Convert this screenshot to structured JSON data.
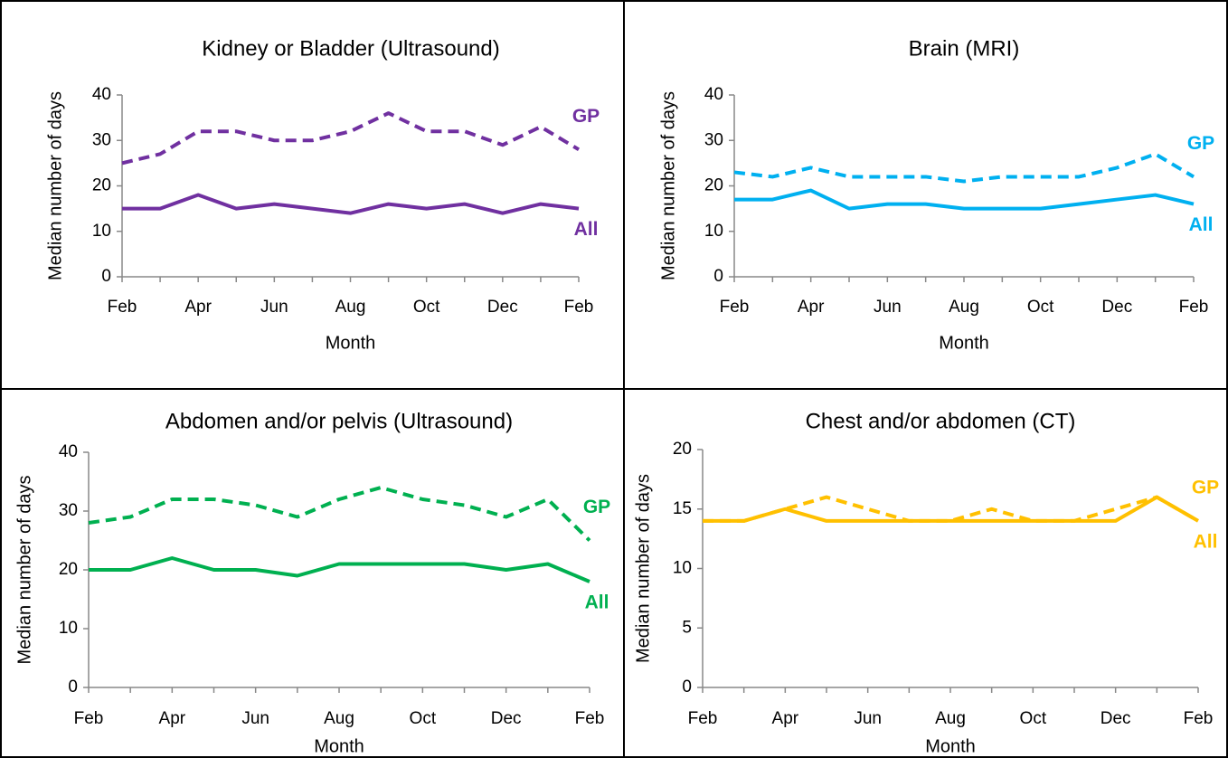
{
  "chart_data": [
    {
      "type": "line",
      "title": "Kidney or Bladder (Ultrasound)",
      "x_label": "Month",
      "y_label": "Median number of days",
      "categories": [
        "Feb",
        null,
        "Apr",
        null,
        "Jun",
        null,
        "Aug",
        null,
        "Oct",
        null,
        "Dec",
        null,
        "Feb"
      ],
      "ylim": [
        0,
        40
      ],
      "yticks": [
        0,
        10,
        20,
        30,
        40
      ],
      "series": [
        {
          "name": "GP",
          "color": "#7030a0",
          "dashed": true,
          "values": [
            25,
            27,
            32,
            32,
            30,
            30,
            32,
            36,
            32,
            32,
            29,
            33,
            28
          ]
        },
        {
          "name": "All",
          "color": "#7030a0",
          "dashed": false,
          "values": [
            15,
            15,
            18,
            15,
            16,
            15,
            14,
            16,
            15,
            16,
            14,
            16,
            15
          ]
        }
      ]
    },
    {
      "type": "line",
      "title": "Brain (MRI)",
      "x_label": "Month",
      "y_label": "Median number of days",
      "categories": [
        "Feb",
        null,
        "Apr",
        null,
        "Jun",
        null,
        "Aug",
        null,
        "Oct",
        null,
        "Dec",
        null,
        "Feb"
      ],
      "ylim": [
        0,
        40
      ],
      "yticks": [
        0,
        10,
        20,
        30,
        40
      ],
      "series": [
        {
          "name": "GP",
          "color": "#00b0f0",
          "dashed": true,
          "values": [
            23,
            22,
            24,
            22,
            22,
            22,
            21,
            22,
            22,
            22,
            24,
            27,
            22
          ]
        },
        {
          "name": "All",
          "color": "#00b0f0",
          "dashed": false,
          "values": [
            17,
            17,
            19,
            15,
            16,
            16,
            15,
            15,
            15,
            16,
            17,
            18,
            16
          ]
        }
      ]
    },
    {
      "type": "line",
      "title": "Abdomen and/or pelvis (Ultrasound)",
      "x_label": "Month",
      "y_label": "Median number of days",
      "categories": [
        "Feb",
        null,
        "Apr",
        null,
        "Jun",
        null,
        "Aug",
        null,
        "Oct",
        null,
        "Dec",
        null,
        "Feb"
      ],
      "ylim": [
        0,
        40
      ],
      "yticks": [
        0,
        10,
        20,
        30,
        40
      ],
      "series": [
        {
          "name": "GP",
          "color": "#00b050",
          "dashed": true,
          "values": [
            28,
            29,
            32,
            32,
            31,
            29,
            32,
            34,
            32,
            31,
            29,
            32,
            25
          ]
        },
        {
          "name": "All",
          "color": "#00b050",
          "dashed": false,
          "values": [
            20,
            20,
            22,
            20,
            20,
            19,
            21,
            21,
            21,
            21,
            20,
            21,
            18
          ]
        }
      ]
    },
    {
      "type": "line",
      "title": "Chest and/or abdomen (CT)",
      "x_label": "Month",
      "y_label": "Median number of days",
      "categories": [
        "Feb",
        null,
        "Apr",
        null,
        "Jun",
        null,
        "Aug",
        null,
        "Oct",
        null,
        "Dec",
        null,
        "Feb"
      ],
      "ylim": [
        0,
        20
      ],
      "yticks": [
        0,
        5,
        10,
        15,
        20
      ],
      "series": [
        {
          "name": "GP",
          "color": "#ffc000",
          "dashed": true,
          "values": [
            14,
            14,
            15,
            16,
            15,
            14,
            14,
            15,
            14,
            14,
            15,
            16,
            14
          ]
        },
        {
          "name": "All",
          "color": "#ffc000",
          "dashed": false,
          "values": [
            14,
            14,
            15,
            14,
            14,
            14,
            14,
            14,
            14,
            14,
            14,
            16,
            14
          ]
        }
      ]
    }
  ]
}
